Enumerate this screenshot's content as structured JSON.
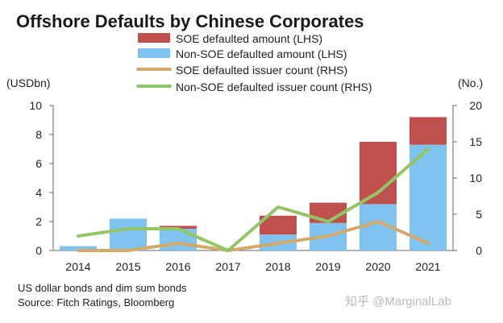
{
  "chart_data": {
    "type": "bar",
    "title": "Offshore Defaults by Chinese Corporates",
    "categories": [
      "2014",
      "2015",
      "2016",
      "2017",
      "2018",
      "2019",
      "2020",
      "2021"
    ],
    "left_axis": {
      "label": "(USDbn)",
      "ylim": [
        0,
        10
      ],
      "ticks": [
        "0",
        "2",
        "4",
        "6",
        "8",
        "10"
      ]
    },
    "right_axis": {
      "label": "(No.)",
      "ylim": [
        0,
        20
      ],
      "ticks": [
        "0",
        "5",
        "10",
        "15",
        "20"
      ]
    },
    "series": [
      {
        "name": "SOE defaulted amount (LHS)",
        "kind": "bar-stack",
        "axis": "left",
        "color": "#c0504d",
        "values": [
          0,
          0,
          0.2,
          0,
          1.3,
          1.4,
          4.3,
          1.9
        ]
      },
      {
        "name": "Non-SOE defaulted amount (LHS)",
        "kind": "bar-stack",
        "axis": "left",
        "color": "#7fc4f0",
        "values": [
          0.3,
          2.2,
          1.5,
          0,
          1.1,
          1.9,
          3.2,
          7.3
        ]
      },
      {
        "name": "SOE defaulted issuer count (RHS)",
        "kind": "line",
        "axis": "right",
        "color": "#d4a96a",
        "values": [
          0,
          0,
          1,
          0,
          1,
          2,
          4,
          1
        ]
      },
      {
        "name": "Non-SOE defaulted issuer count (RHS)",
        "kind": "line",
        "axis": "right",
        "color": "#92c665",
        "values": [
          2,
          3,
          3,
          0,
          6,
          4,
          8,
          14
        ]
      }
    ],
    "grid": false,
    "legend_position": "top-center"
  },
  "notes": [
    "US dollar bonds and dim sum bonds",
    "Source: Fitch Ratings, Bloomberg"
  ],
  "watermark": "知乎 @MarginalLab"
}
